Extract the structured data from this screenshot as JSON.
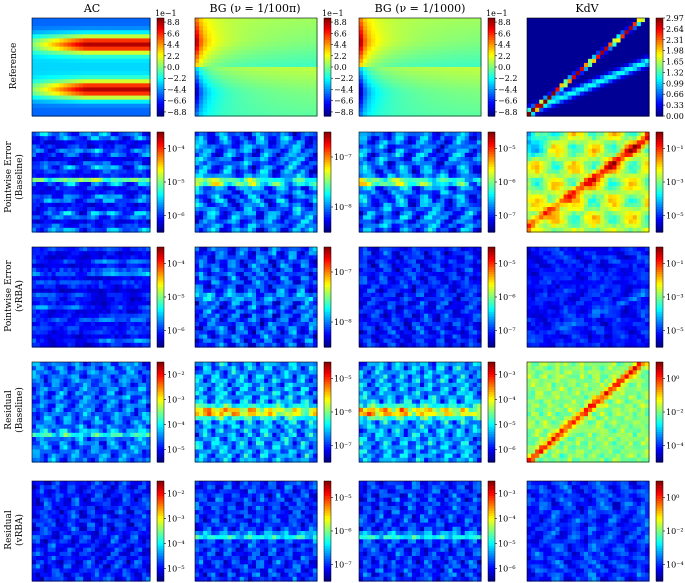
{
  "columns": [
    "AC",
    "BG (ν = 1/100π)",
    "BG (ν = 1/1000)",
    "KdV"
  ],
  "rows": [
    [
      "Reference"
    ],
    [
      "Pointwise Error",
      "(Baseline)"
    ],
    [
      "Pointwise Error",
      "(vRBA)"
    ],
    [
      "Residual",
      "(Baseline)"
    ],
    [
      "Residual",
      "(vRBA)"
    ]
  ],
  "chart_data": [
    {
      "type": "heatmap",
      "row": "Reference",
      "column": "AC",
      "scale": "linear",
      "offset_label": "1e−1",
      "colorbar_ticks": [
        "8.8",
        "6.6",
        "4.4",
        "2.2",
        "0.0",
        "−2.2",
        "−4.4",
        "−6.6",
        "−8.8"
      ],
      "range": [
        -9.6,
        9.6
      ],
      "pattern": "ac_ref"
    },
    {
      "type": "heatmap",
      "row": "Reference",
      "column": "BG (ν = 1/100π)",
      "scale": "linear",
      "offset_label": "1e−1",
      "colorbar_ticks": [
        "8.8",
        "6.6",
        "4.4",
        "2.2",
        "0.0",
        "−2.2",
        "−4.4",
        "−6.6",
        "−8.8"
      ],
      "range": [
        -9.6,
        9.6
      ],
      "pattern": "bg_ref"
    },
    {
      "type": "heatmap",
      "row": "Reference",
      "column": "BG (ν = 1/1000)",
      "scale": "linear",
      "offset_label": "1e−1",
      "colorbar_ticks": [
        "8.8",
        "6.6",
        "4.4",
        "2.2",
        "0.0",
        "−2.2",
        "−4.4",
        "−6.6",
        "−8.8"
      ],
      "range": [
        -9.6,
        9.6
      ],
      "pattern": "bg_ref"
    },
    {
      "type": "heatmap",
      "row": "Reference",
      "column": "KdV",
      "scale": "linear",
      "colorbar_ticks": [
        "2.97",
        "2.64",
        "2.31",
        "1.98",
        "1.65",
        "1.32",
        "0.99",
        "0.66",
        "0.33",
        "0.00"
      ],
      "range": [
        0.0,
        2.97
      ],
      "pattern": "kdv_ref"
    },
    {
      "type": "heatmap",
      "row": "Pointwise Error (Baseline)",
      "column": "AC",
      "scale": "log",
      "colorbar_ticks": [
        "10⁻⁴",
        "10⁻⁵",
        "10⁻⁶"
      ],
      "range_exp": [
        -6.7,
        -3.5
      ],
      "pattern": "ac_err"
    },
    {
      "type": "heatmap",
      "row": "Pointwise Error (Baseline)",
      "column": "BG (ν = 1/100π)",
      "scale": "log",
      "colorbar_ticks": [
        "10⁻⁷",
        "10⁻⁸"
      ],
      "range_exp": [
        -8.7,
        -6.6
      ],
      "pattern": "bg_err"
    },
    {
      "type": "heatmap",
      "row": "Pointwise Error (Baseline)",
      "column": "BG (ν = 1/1000)",
      "scale": "log",
      "colorbar_ticks": [
        "10⁻⁵",
        "10⁻⁶",
        "10⁻⁷"
      ],
      "range_exp": [
        -7.6,
        -4.7
      ],
      "pattern": "bg_err"
    },
    {
      "type": "heatmap",
      "row": "Pointwise Error (Baseline)",
      "column": "KdV",
      "scale": "log",
      "colorbar_ticks": [
        "10⁻¹",
        "10⁻³",
        "10⁻⁵"
      ],
      "range_exp": [
        -6.2,
        0.4
      ],
      "pattern": "kdv_err"
    },
    {
      "type": "heatmap",
      "row": "Pointwise Error (vRBA)",
      "column": "AC",
      "scale": "log",
      "colorbar_ticks": [
        "10⁻⁴",
        "10⁻⁵",
        "10⁻⁶"
      ],
      "range_exp": [
        -6.7,
        -3.5
      ],
      "pattern": "ac_v"
    },
    {
      "type": "heatmap",
      "row": "Pointwise Error (vRBA)",
      "column": "BG (ν = 1/100π)",
      "scale": "log",
      "colorbar_ticks": [
        "10⁻⁷",
        "10⁻⁸"
      ],
      "range_exp": [
        -8.7,
        -6.6
      ],
      "pattern": "bg_v"
    },
    {
      "type": "heatmap",
      "row": "Pointwise Error (vRBA)",
      "column": "BG (ν = 1/1000)",
      "scale": "log",
      "colorbar_ticks": [
        "10⁻⁵",
        "10⁻⁶",
        "10⁻⁷"
      ],
      "range_exp": [
        -7.6,
        -4.7
      ],
      "pattern": "bg_v1000"
    },
    {
      "type": "heatmap",
      "row": "Pointwise Error (vRBA)",
      "column": "KdV",
      "scale": "log",
      "colorbar_ticks": [
        "10⁻¹",
        "10⁻³",
        "10⁻⁵"
      ],
      "range_exp": [
        -6.2,
        0.4
      ],
      "pattern": "kdv_v"
    },
    {
      "type": "heatmap",
      "row": "Residual (Baseline)",
      "column": "AC",
      "scale": "log",
      "colorbar_ticks": [
        "10⁻²",
        "10⁻³",
        "10⁻⁴",
        "10⁻⁵"
      ],
      "range_exp": [
        -5.7,
        -1.5
      ],
      "pattern": "res_ac"
    },
    {
      "type": "heatmap",
      "row": "Residual (Baseline)",
      "column": "BG (ν = 1/100π)",
      "scale": "log",
      "colorbar_ticks": [
        "10⁻⁵",
        "10⁻⁶",
        "10⁻⁷"
      ],
      "range_exp": [
        -7.4,
        -4.6
      ],
      "pattern": "res_bg"
    },
    {
      "type": "heatmap",
      "row": "Residual (Baseline)",
      "column": "BG (ν = 1/1000)",
      "scale": "log",
      "colorbar_ticks": [
        "10⁻³",
        "10⁻⁴",
        "10⁻⁵",
        "10⁻⁶"
      ],
      "range_exp": [
        -6.6,
        -2.5
      ],
      "pattern": "res_bg"
    },
    {
      "type": "heatmap",
      "row": "Residual (Baseline)",
      "column": "KdV",
      "scale": "log",
      "colorbar_ticks": [
        "10⁰",
        "10⁻²",
        "10⁻⁴"
      ],
      "range_exp": [
        -5.2,
        0.2
      ],
      "pattern": "res_kdv"
    },
    {
      "type": "heatmap",
      "row": "Residual (vRBA)",
      "column": "AC",
      "scale": "log",
      "colorbar_ticks": [
        "10⁻²",
        "10⁻³",
        "10⁻⁴",
        "10⁻⁵"
      ],
      "range_exp": [
        -5.7,
        -1.5
      ],
      "pattern": "resv_ac"
    },
    {
      "type": "heatmap",
      "row": "Residual (vRBA)",
      "column": "BG (ν = 1/100π)",
      "scale": "log",
      "colorbar_ticks": [
        "10⁻⁵",
        "10⁻⁶",
        "10⁻⁷"
      ],
      "range_exp": [
        -7.4,
        -4.6
      ],
      "pattern": "resv_bg"
    },
    {
      "type": "heatmap",
      "row": "Residual (vRBA)",
      "column": "BG (ν = 1/1000)",
      "scale": "log",
      "colorbar_ticks": [
        "10⁻³",
        "10⁻⁴",
        "10⁻⁵",
        "10⁻⁶"
      ],
      "range_exp": [
        -6.6,
        -2.5
      ],
      "pattern": "resv_bg"
    },
    {
      "type": "heatmap",
      "row": "Residual (vRBA)",
      "column": "KdV",
      "scale": "log",
      "colorbar_ticks": [
        "10⁰",
        "10⁻²",
        "10⁻⁴"
      ],
      "range_exp": [
        -5.2,
        0.2
      ],
      "pattern": "resv_kdv"
    }
  ]
}
